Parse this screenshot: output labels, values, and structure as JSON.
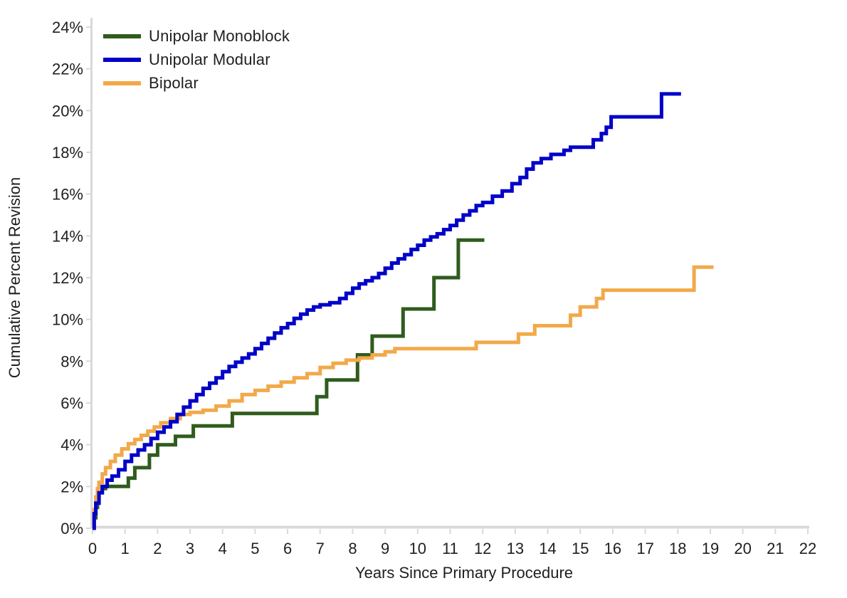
{
  "colors": {
    "background": "#ffffff",
    "axis": "#d9d9d9",
    "text": "#1f1f1f",
    "series_unipolar_monoblock": "#2f5c1d",
    "series_unipolar_modular": "#0000c8",
    "series_bipolar": "#f2a94a"
  },
  "chart_data": {
    "type": "line",
    "subtype": "step-after",
    "title": "",
    "xlabel": "Years Since Primary Procedure",
    "ylabel": "Cumulative Percent Revision",
    "xlim": [
      0,
      22
    ],
    "ylim": [
      0,
      24
    ],
    "grid": false,
    "legend_position": "top-left-inside",
    "x_ticks": [
      0,
      1,
      2,
      3,
      4,
      5,
      6,
      7,
      8,
      9,
      10,
      11,
      12,
      13,
      14,
      15,
      16,
      17,
      18,
      19,
      20,
      21,
      22
    ],
    "x_tick_labels": [
      "0",
      "1",
      "2",
      "3",
      "4",
      "5",
      "6",
      "7",
      "8",
      "9",
      "10",
      "11",
      "12",
      "13",
      "14",
      "15",
      "16",
      "17",
      "18",
      "19",
      "20",
      "21",
      "22"
    ],
    "y_ticks": [
      0,
      2,
      4,
      6,
      8,
      10,
      12,
      14,
      16,
      18,
      20,
      22,
      24
    ],
    "y_tick_labels": [
      "0%",
      "2%",
      "4%",
      "6%",
      "8%",
      "10%",
      "12%",
      "14%",
      "16%",
      "18%",
      "20%",
      "22%",
      "24%"
    ],
    "series": [
      {
        "name": "Unipolar Monoblock",
        "color": "#2f5c1d",
        "points": [
          [
            0,
            0
          ],
          [
            0.05,
            0.5
          ],
          [
            0.1,
            1.0
          ],
          [
            0.15,
            1.4
          ],
          [
            0.2,
            1.7
          ],
          [
            0.3,
            1.9
          ],
          [
            0.4,
            2.0
          ],
          [
            1.1,
            2.4
          ],
          [
            1.3,
            2.9
          ],
          [
            1.75,
            3.5
          ],
          [
            2.0,
            4.0
          ],
          [
            2.55,
            4.4
          ],
          [
            3.1,
            4.9
          ],
          [
            4.3,
            5.5
          ],
          [
            6.9,
            6.3
          ],
          [
            7.2,
            7.1
          ],
          [
            8.15,
            8.3
          ],
          [
            8.6,
            9.2
          ],
          [
            9.55,
            10.5
          ],
          [
            10.5,
            12.0
          ],
          [
            11.25,
            13.8
          ],
          [
            12.05,
            13.8
          ]
        ]
      },
      {
        "name": "Bipolar",
        "color": "#f2a94a",
        "points": [
          [
            0,
            0
          ],
          [
            0.05,
            0.9
          ],
          [
            0.1,
            1.5
          ],
          [
            0.15,
            1.9
          ],
          [
            0.2,
            2.2
          ],
          [
            0.3,
            2.6
          ],
          [
            0.4,
            2.9
          ],
          [
            0.55,
            3.2
          ],
          [
            0.7,
            3.5
          ],
          [
            0.9,
            3.8
          ],
          [
            1.1,
            4.05
          ],
          [
            1.3,
            4.25
          ],
          [
            1.5,
            4.45
          ],
          [
            1.7,
            4.65
          ],
          [
            1.9,
            4.85
          ],
          [
            2.1,
            5.05
          ],
          [
            2.4,
            5.25
          ],
          [
            2.7,
            5.45
          ],
          [
            3.0,
            5.55
          ],
          [
            3.4,
            5.65
          ],
          [
            3.8,
            5.85
          ],
          [
            4.2,
            6.1
          ],
          [
            4.6,
            6.4
          ],
          [
            5.0,
            6.6
          ],
          [
            5.4,
            6.8
          ],
          [
            5.8,
            7.0
          ],
          [
            6.2,
            7.2
          ],
          [
            6.6,
            7.4
          ],
          [
            7.0,
            7.7
          ],
          [
            7.4,
            7.9
          ],
          [
            7.8,
            8.05
          ],
          [
            8.2,
            8.15
          ],
          [
            8.6,
            8.3
          ],
          [
            9.0,
            8.45
          ],
          [
            9.3,
            8.6
          ],
          [
            11.8,
            8.9
          ],
          [
            13.1,
            9.3
          ],
          [
            13.6,
            9.7
          ],
          [
            14.7,
            10.2
          ],
          [
            15.0,
            10.6
          ],
          [
            15.5,
            11.0
          ],
          [
            15.7,
            11.4
          ],
          [
            18.5,
            12.5
          ],
          [
            19.1,
            12.5
          ]
        ]
      },
      {
        "name": "Unipolar Modular",
        "color": "#0000c8",
        "points": [
          [
            0,
            0
          ],
          [
            0.05,
            0.7
          ],
          [
            0.1,
            1.2
          ],
          [
            0.2,
            1.7
          ],
          [
            0.3,
            2.0
          ],
          [
            0.45,
            2.3
          ],
          [
            0.6,
            2.5
          ],
          [
            0.8,
            2.8
          ],
          [
            1.0,
            3.2
          ],
          [
            1.2,
            3.5
          ],
          [
            1.4,
            3.75
          ],
          [
            1.6,
            4.0
          ],
          [
            1.8,
            4.3
          ],
          [
            2.0,
            4.6
          ],
          [
            2.2,
            4.85
          ],
          [
            2.4,
            5.1
          ],
          [
            2.6,
            5.45
          ],
          [
            2.8,
            5.8
          ],
          [
            3.0,
            6.1
          ],
          [
            3.2,
            6.4
          ],
          [
            3.4,
            6.7
          ],
          [
            3.6,
            6.95
          ],
          [
            3.8,
            7.2
          ],
          [
            4.0,
            7.5
          ],
          [
            4.2,
            7.75
          ],
          [
            4.4,
            7.95
          ],
          [
            4.6,
            8.15
          ],
          [
            4.8,
            8.35
          ],
          [
            5.0,
            8.6
          ],
          [
            5.2,
            8.85
          ],
          [
            5.4,
            9.1
          ],
          [
            5.6,
            9.35
          ],
          [
            5.8,
            9.6
          ],
          [
            6.0,
            9.8
          ],
          [
            6.2,
            10.05
          ],
          [
            6.4,
            10.25
          ],
          [
            6.6,
            10.45
          ],
          [
            6.8,
            10.6
          ],
          [
            7.0,
            10.7
          ],
          [
            7.3,
            10.8
          ],
          [
            7.6,
            11.0
          ],
          [
            7.8,
            11.25
          ],
          [
            8.0,
            11.5
          ],
          [
            8.2,
            11.7
          ],
          [
            8.4,
            11.85
          ],
          [
            8.6,
            12.0
          ],
          [
            8.8,
            12.2
          ],
          [
            9.0,
            12.45
          ],
          [
            9.2,
            12.7
          ],
          [
            9.4,
            12.9
          ],
          [
            9.6,
            13.1
          ],
          [
            9.8,
            13.35
          ],
          [
            10.0,
            13.55
          ],
          [
            10.2,
            13.8
          ],
          [
            10.4,
            13.95
          ],
          [
            10.6,
            14.1
          ],
          [
            10.8,
            14.3
          ],
          [
            11.0,
            14.5
          ],
          [
            11.2,
            14.75
          ],
          [
            11.4,
            15.0
          ],
          [
            11.6,
            15.2
          ],
          [
            11.8,
            15.45
          ],
          [
            12.0,
            15.6
          ],
          [
            12.3,
            15.9
          ],
          [
            12.6,
            16.15
          ],
          [
            12.9,
            16.5
          ],
          [
            13.15,
            16.8
          ],
          [
            13.35,
            17.2
          ],
          [
            13.55,
            17.5
          ],
          [
            13.8,
            17.7
          ],
          [
            14.1,
            17.9
          ],
          [
            14.5,
            18.1
          ],
          [
            14.7,
            18.25
          ],
          [
            15.4,
            18.6
          ],
          [
            15.65,
            18.9
          ],
          [
            15.8,
            19.2
          ],
          [
            15.95,
            19.7
          ],
          [
            17.5,
            20.8
          ],
          [
            18.1,
            20.8
          ]
        ]
      }
    ],
    "legend_order": [
      "Unipolar Monoblock",
      "Unipolar Modular",
      "Bipolar"
    ]
  }
}
